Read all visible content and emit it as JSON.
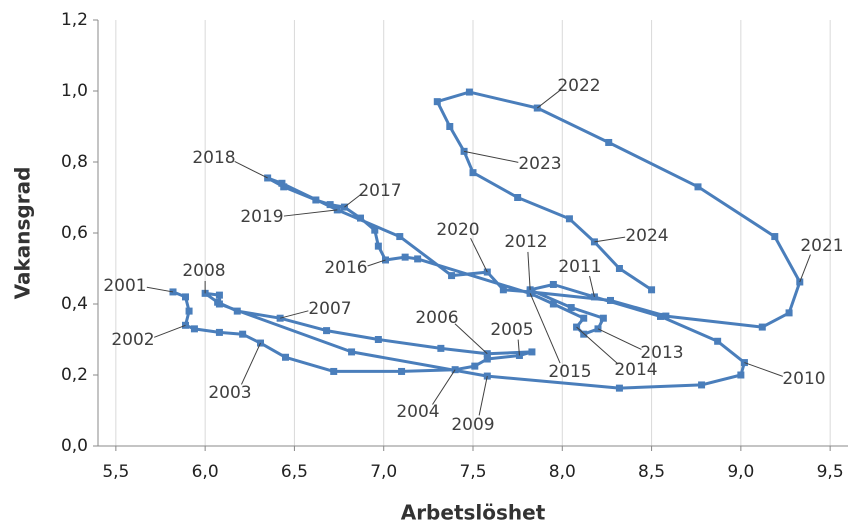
{
  "chart_data": {
    "type": "scatter",
    "connected": true,
    "color": "#4a7ebb",
    "x_label": "Arbetslöshet",
    "y_label": "Vakansgrad",
    "xlim": [
      5.4,
      9.6
    ],
    "ylim": [
      0,
      1.2
    ],
    "xticks": [
      {
        "value": 5.5,
        "label": "5,5"
      },
      {
        "value": 6,
        "label": "6,0"
      },
      {
        "value": 6.5,
        "label": "6,5"
      },
      {
        "value": 7,
        "label": "7,0"
      },
      {
        "value": 7.5,
        "label": "7,5"
      },
      {
        "value": 8,
        "label": "8,0"
      },
      {
        "value": 8.5,
        "label": "8,5"
      },
      {
        "value": 9,
        "label": "9,0"
      },
      {
        "value": 9.5,
        "label": "9,5"
      }
    ],
    "yticks": [
      {
        "value": 0,
        "label": "0,0"
      },
      {
        "value": 0.2,
        "label": "0,2"
      },
      {
        "value": 0.4,
        "label": "0,4"
      },
      {
        "value": 0.6,
        "label": "0,6"
      },
      {
        "value": 0.8,
        "label": "0,8"
      },
      {
        "value": 1,
        "label": "1,0"
      },
      {
        "value": 1.2,
        "label": "1,2"
      }
    ],
    "grid": "x",
    "x": [
      5.82,
      5.89,
      5.91,
      5.89,
      5.94,
      6.08,
      6.21,
      6.31,
      6.45,
      6.72,
      7.1,
      7.4,
      7.51,
      7.58,
      7.76,
      7.83,
      7.58,
      7.32,
      6.97,
      6.68,
      6.42,
      6.18,
      6.07,
      6.0,
      6.08,
      6.08,
      6.82,
      7.58,
      8.32,
      8.78,
      9.0,
      9.02,
      8.87,
      8.55,
      8.18,
      7.95,
      7.82,
      8.05,
      8.23,
      8.2,
      8.12,
      8.08,
      8.12,
      7.95,
      7.82,
      7.19,
      7.12,
      7.01,
      6.97,
      6.95,
      6.87,
      6.78,
      6.7,
      6.62,
      6.44,
      6.35,
      6.43,
      6.74,
      7.09,
      7.38,
      7.58,
      7.67,
      7.82,
      8.27,
      8.58,
      9.12,
      9.27,
      9.33,
      9.19,
      8.76,
      8.26,
      7.86,
      7.48,
      7.3,
      7.37,
      7.45,
      7.5,
      7.75,
      8.04,
      8.18,
      8.32,
      8.5
    ],
    "values": [
      0.434,
      0.42,
      0.38,
      0.34,
      0.33,
      0.32,
      0.315,
      0.29,
      0.25,
      0.21,
      0.21,
      0.215,
      0.225,
      0.245,
      0.255,
      0.265,
      0.26,
      0.275,
      0.3,
      0.325,
      0.36,
      0.38,
      0.405,
      0.43,
      0.425,
      0.4,
      0.265,
      0.197,
      0.163,
      0.172,
      0.2,
      0.235,
      0.295,
      0.365,
      0.42,
      0.455,
      0.44,
      0.39,
      0.36,
      0.33,
      0.315,
      0.335,
      0.36,
      0.4,
      0.43,
      0.527,
      0.532,
      0.524,
      0.563,
      0.608,
      0.642,
      0.673,
      0.68,
      0.693,
      0.73,
      0.755,
      0.74,
      0.665,
      0.59,
      0.48,
      0.49,
      0.44,
      0.434,
      0.41,
      0.366,
      0.335,
      0.375,
      0.462,
      0.59,
      0.73,
      0.855,
      0.952,
      0.997,
      0.97,
      0.9,
      0.83,
      0.77,
      0.7,
      0.64,
      0.575,
      0.5,
      0.44
    ],
    "annotations": [
      {
        "text": "2001",
        "x": 5.82,
        "y": 0.434
      },
      {
        "text": "2002",
        "x": 5.89,
        "y": 0.34
      },
      {
        "text": "2003",
        "x": 6.31,
        "y": 0.29
      },
      {
        "text": "2004",
        "x": 7.4,
        "y": 0.215
      },
      {
        "text": "2005",
        "x": 7.76,
        "y": 0.255
      },
      {
        "text": "2006",
        "x": 7.58,
        "y": 0.26
      },
      {
        "text": "2007",
        "x": 6.42,
        "y": 0.36
      },
      {
        "text": "2008",
        "x": 6.0,
        "y": 0.43
      },
      {
        "text": "2009",
        "x": 7.58,
        "y": 0.197
      },
      {
        "text": "2010",
        "x": 9.02,
        "y": 0.235
      },
      {
        "text": "2011",
        "x": 8.18,
        "y": 0.42
      },
      {
        "text": "2012",
        "x": 7.82,
        "y": 0.44
      },
      {
        "text": "2013",
        "x": 8.2,
        "y": 0.33
      },
      {
        "text": "2014",
        "x": 8.08,
        "y": 0.335
      },
      {
        "text": "2015",
        "x": 7.82,
        "y": 0.43
      },
      {
        "text": "2016",
        "x": 7.01,
        "y": 0.524
      },
      {
        "text": "2017",
        "x": 6.78,
        "y": 0.673
      },
      {
        "text": "2018",
        "x": 6.35,
        "y": 0.755
      },
      {
        "text": "2019",
        "x": 6.74,
        "y": 0.665
      },
      {
        "text": "2020",
        "x": 7.58,
        "y": 0.49
      },
      {
        "text": "2021",
        "x": 9.33,
        "y": 0.462
      },
      {
        "text": "2022",
        "x": 7.86,
        "y": 0.952
      },
      {
        "text": "2023",
        "x": 7.45,
        "y": 0.83
      },
      {
        "text": "2024",
        "x": 8.18,
        "y": 0.575
      }
    ]
  }
}
